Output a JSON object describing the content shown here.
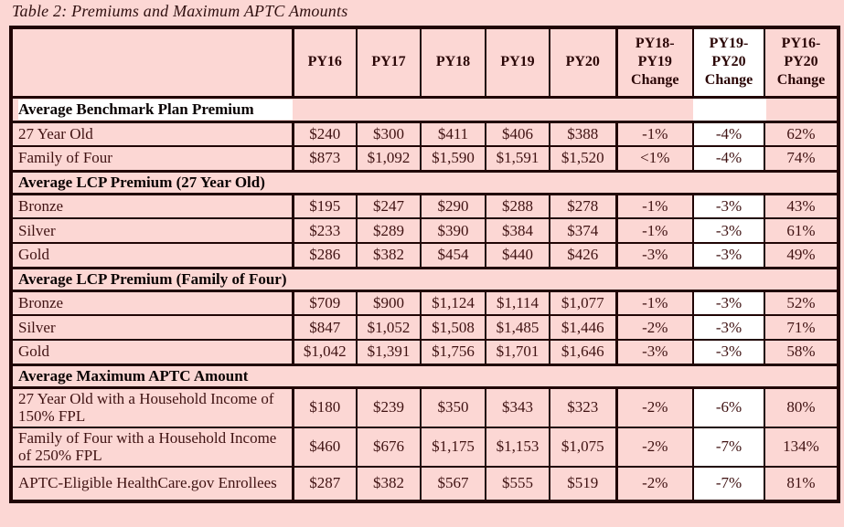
{
  "title": "Table 2: Premiums and Maximum APTC Amounts",
  "colors": {
    "page_background": "#fcd7d4",
    "cell_background": "#fcd7d4",
    "highlight_background": "#ffffff",
    "border": "#200505",
    "data_text": "#3f1212",
    "section_text": "#0a0202"
  },
  "table": {
    "columns": [
      {
        "label": "PY16",
        "display": "PY16"
      },
      {
        "label": "PY17",
        "display": "PY17"
      },
      {
        "label": "PY18",
        "display": "PY18"
      },
      {
        "label": "PY19",
        "display": "PY19"
      },
      {
        "label": "PY20",
        "display": "PY20"
      },
      {
        "label": "PY18-PY19 Change",
        "display": "PY18-\nPY19\nChange"
      },
      {
        "label": "PY19-PY20 Change",
        "display": "PY19-\nPY20\nChange",
        "highlight": true
      },
      {
        "label": "PY16-PY20 Change",
        "display": "PY16-\nPY20\nChange"
      }
    ],
    "sections": [
      {
        "header": "Average Benchmark Plan Premium",
        "header_highlighted": true,
        "column_strip": true,
        "rows": [
          {
            "label": "27 Year Old",
            "values": [
              "$240",
              "$300",
              "$411",
              "$406",
              "$388",
              "-1%",
              "-4%",
              "62%"
            ]
          },
          {
            "label": "Family of Four",
            "values": [
              "$873",
              "$1,092",
              "$1,590",
              "$1,591",
              "$1,520",
              "<1%",
              "-4%",
              "74%"
            ]
          }
        ]
      },
      {
        "header": "Average LCP Premium (27 Year Old)",
        "rows": [
          {
            "label": "Bronze",
            "values": [
              "$195",
              "$247",
              "$290",
              "$288",
              "$278",
              "-1%",
              "-3%",
              "43%"
            ]
          },
          {
            "label": "Silver",
            "values": [
              "$233",
              "$289",
              "$390",
              "$384",
              "$374",
              "-1%",
              "-3%",
              "61%"
            ]
          },
          {
            "label": "Gold",
            "values": [
              "$286",
              "$382",
              "$454",
              "$440",
              "$426",
              "-3%",
              "-3%",
              "49%"
            ]
          }
        ]
      },
      {
        "header": "Average LCP Premium (Family of Four)",
        "rows": [
          {
            "label": "Bronze",
            "values": [
              "$709",
              "$900",
              "$1,124",
              "$1,114",
              "$1,077",
              "-1%",
              "-3%",
              "52%"
            ]
          },
          {
            "label": "Silver",
            "values": [
              "$847",
              "$1,052",
              "$1,508",
              "$1,485",
              "$1,446",
              "-2%",
              "-3%",
              "71%"
            ]
          },
          {
            "label": "Gold",
            "values": [
              "$1,042",
              "$1,391",
              "$1,756",
              "$1,701",
              "$1,646",
              "-3%",
              "-3%",
              "58%"
            ]
          }
        ]
      },
      {
        "header": "Average Maximum APTC Amount",
        "tall_rows": true,
        "rows": [
          {
            "label": "27 Year Old with a Household Income of 150% FPL",
            "values": [
              "$180",
              "$239",
              "$350",
              "$343",
              "$323",
              "-2%",
              "-6%",
              "80%"
            ]
          },
          {
            "label": "Family of Four with a Household Income of 250% FPL",
            "values": [
              "$460",
              "$676",
              "$1,175",
              "$1,153",
              "$1,075",
              "-2%",
              "-7%",
              "134%"
            ]
          },
          {
            "label": "APTC-Eligible HealthCare.gov Enrollees",
            "values": [
              "$287",
              "$382",
              "$567",
              "$555",
              "$519",
              "-2%",
              "-7%",
              "81%"
            ]
          }
        ]
      }
    ]
  }
}
